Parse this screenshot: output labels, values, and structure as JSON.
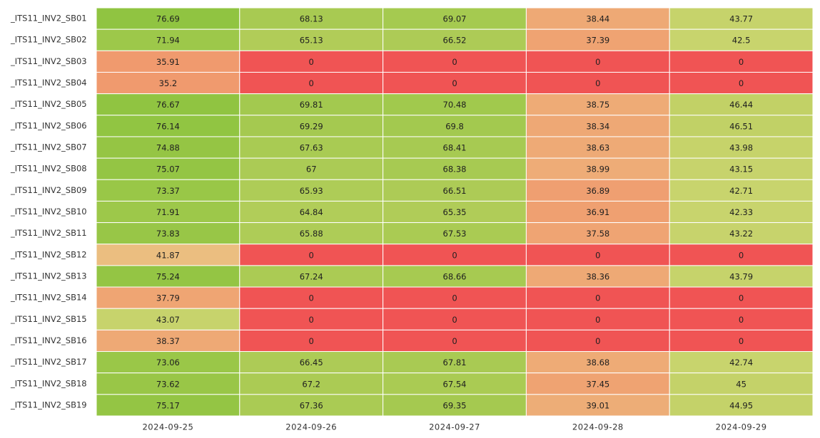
{
  "chart_data": {
    "type": "heatmap",
    "x": [
      "2024-09-25",
      "2024-09-26",
      "2024-09-27",
      "2024-09-28",
      "2024-09-29"
    ],
    "y": [
      "_ITS11_INV2_SB01",
      "_ITS11_INV2_SB02",
      "_ITS11_INV2_SB03",
      "_ITS11_INV2_SB04",
      "_ITS11_INV2_SB05",
      "_ITS11_INV2_SB06",
      "_ITS11_INV2_SB07",
      "_ITS11_INV2_SB08",
      "_ITS11_INV2_SB09",
      "_ITS11_INV2_SB10",
      "_ITS11_INV2_SB11",
      "_ITS11_INV2_SB12",
      "_ITS11_INV2_SB13",
      "_ITS11_INV2_SB14",
      "_ITS11_INV2_SB15",
      "_ITS11_INV2_SB16",
      "_ITS11_INV2_SB17",
      "_ITS11_INV2_SB18",
      "_ITS11_INV2_SB19"
    ],
    "values": [
      [
        76.69,
        68.13,
        69.07,
        38.44,
        43.77
      ],
      [
        71.94,
        65.13,
        66.52,
        37.39,
        42.5
      ],
      [
        35.91,
        0,
        0,
        0,
        0
      ],
      [
        35.2,
        0,
        0,
        0,
        0
      ],
      [
        76.67,
        69.81,
        70.48,
        38.75,
        46.44
      ],
      [
        76.14,
        69.29,
        69.8,
        38.34,
        46.51
      ],
      [
        74.88,
        67.63,
        68.41,
        38.63,
        43.98
      ],
      [
        75.07,
        67,
        68.38,
        38.99,
        43.15
      ],
      [
        73.37,
        65.93,
        66.51,
        36.89,
        42.71
      ],
      [
        71.91,
        64.84,
        65.35,
        36.91,
        42.33
      ],
      [
        73.83,
        65.88,
        67.53,
        37.58,
        43.22
      ],
      [
        41.87,
        0,
        0,
        0,
        0
      ],
      [
        75.24,
        67.24,
        68.66,
        38.36,
        43.79
      ],
      [
        37.79,
        0,
        0,
        0,
        0
      ],
      [
        43.07,
        0,
        0,
        0,
        0
      ],
      [
        38.37,
        0,
        0,
        0,
        0
      ],
      [
        73.06,
        66.45,
        67.81,
        38.68,
        42.74
      ],
      [
        73.62,
        67.2,
        67.54,
        37.45,
        45
      ],
      [
        75.17,
        67.36,
        69.35,
        39.01,
        44.95
      ]
    ],
    "colors": {
      "zero": "#f05454",
      "low": "#f09a6e",
      "mid": "#ebbf80",
      "high": "#8fc440"
    },
    "cell_text_colors": {
      "zero": "#ffffff",
      "default": "#1f1f1f"
    }
  }
}
